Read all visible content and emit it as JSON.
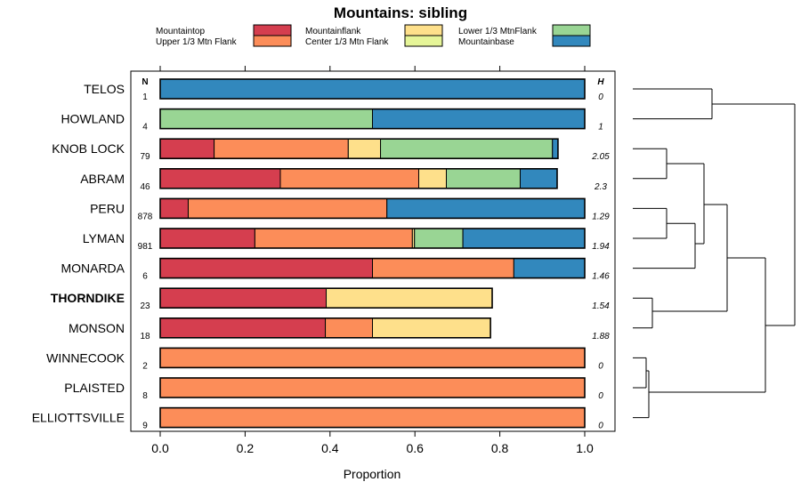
{
  "chart_data": {
    "type": "bar",
    "orientation": "horizontal",
    "stacked": true,
    "title": "Mountains: sibling",
    "xlabel": "Proportion",
    "xlim": [
      0,
      1
    ],
    "xticks": [
      "0.0",
      "0.2",
      "0.4",
      "0.6",
      "0.8",
      "1.0"
    ],
    "n_header": "N",
    "h_header": "H",
    "legend": [
      {
        "name": "Mountaintop",
        "color": "#d53e4f"
      },
      {
        "name": "Upper 1/3 Mtn Flank",
        "color": "#fc8d59"
      },
      {
        "name": "Mountainflank",
        "color": "#fee08b"
      },
      {
        "name": "Center 1/3 Mtn Flank",
        "color": "#e6f598"
      },
      {
        "name": "Lower 1/3 MtnFlank",
        "color": "#99d594"
      },
      {
        "name": "Mountainbase",
        "color": "#3288bd"
      }
    ],
    "categories": [
      {
        "name": "TELOS",
        "n": "1",
        "h": "0",
        "bold": false,
        "values": [
          0,
          0,
          0,
          0,
          0,
          1.0
        ]
      },
      {
        "name": "HOWLAND",
        "n": "4",
        "h": "1",
        "bold": false,
        "values": [
          0,
          0,
          0,
          0,
          0.5,
          0.5
        ]
      },
      {
        "name": "KNOB LOCK",
        "n": "79",
        "h": "2.05",
        "bold": false,
        "values": [
          0.127,
          0.316,
          0.076,
          0,
          0.405,
          0.013
        ]
      },
      {
        "name": "ABRAM",
        "n": "46",
        "h": "2.3",
        "bold": false,
        "values": [
          0.283,
          0.326,
          0.065,
          0,
          0.174,
          0.087
        ]
      },
      {
        "name": "PERU",
        "n": "878",
        "h": "1.29",
        "bold": false,
        "values": [
          0.066,
          0.468,
          0,
          0,
          0,
          0.466
        ]
      },
      {
        "name": "LYMAN",
        "n": "981",
        "h": "1.94",
        "bold": false,
        "values": [
          0.223,
          0.371,
          0.005,
          0,
          0.114,
          0.287
        ]
      },
      {
        "name": "MONARDA",
        "n": "6",
        "h": "1.46",
        "bold": false,
        "values": [
          0.5,
          0.333,
          0,
          0,
          0,
          0.167
        ]
      },
      {
        "name": "THORNDIKE",
        "n": "23",
        "h": "1.54",
        "bold": true,
        "values": [
          0.391,
          0,
          0.391,
          0,
          0,
          0
        ]
      },
      {
        "name": "MONSON",
        "n": "18",
        "h": "1.88",
        "bold": false,
        "values": [
          0.389,
          0.111,
          0.278,
          0,
          0,
          0
        ]
      },
      {
        "name": "WINNECOOK",
        "n": "2",
        "h": "0",
        "bold": false,
        "values": [
          0,
          1.0,
          0,
          0,
          0,
          0
        ]
      },
      {
        "name": "PLAISTED",
        "n": "8",
        "h": "0",
        "bold": false,
        "values": [
          0,
          1.0,
          0,
          0,
          0,
          0
        ]
      },
      {
        "name": "ELLIOTTSVILLE",
        "n": "9",
        "h": "0",
        "bold": false,
        "values": [
          0,
          1.0,
          0,
          0,
          0,
          0
        ]
      }
    ],
    "dendrogram": "hierarchical clustering tree of the 12 categories shown at right"
  }
}
